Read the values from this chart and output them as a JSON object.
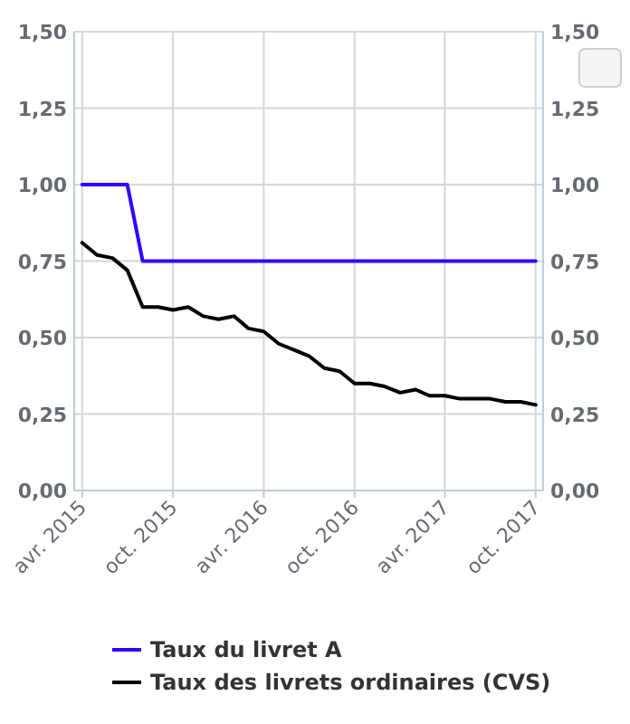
{
  "chart_data": {
    "type": "line",
    "x": [
      "2015-04",
      "2015-05",
      "2015-06",
      "2015-07",
      "2015-08",
      "2015-09",
      "2015-10",
      "2015-11",
      "2015-12",
      "2016-01",
      "2016-02",
      "2016-03",
      "2016-04",
      "2016-05",
      "2016-06",
      "2016-07",
      "2016-08",
      "2016-09",
      "2016-10",
      "2016-11",
      "2016-12",
      "2017-01",
      "2017-02",
      "2017-03",
      "2017-04",
      "2017-05",
      "2017-06",
      "2017-07",
      "2017-08",
      "2017-09",
      "2017-10"
    ],
    "series": [
      {
        "name": "Taux du livret A",
        "color": "#3300ff",
        "values": [
          1.0,
          1.0,
          1.0,
          1.0,
          0.75,
          0.75,
          0.75,
          0.75,
          0.75,
          0.75,
          0.75,
          0.75,
          0.75,
          0.75,
          0.75,
          0.75,
          0.75,
          0.75,
          0.75,
          0.75,
          0.75,
          0.75,
          0.75,
          0.75,
          0.75,
          0.75,
          0.75,
          0.75,
          0.75,
          0.75,
          0.75
        ]
      },
      {
        "name": "Taux des livrets ordinaires (CVS)",
        "color": "#000000",
        "values": [
          0.81,
          0.77,
          0.76,
          0.72,
          0.6,
          0.6,
          0.59,
          0.6,
          0.57,
          0.56,
          0.57,
          0.53,
          0.52,
          0.48,
          0.46,
          0.44,
          0.4,
          0.39,
          0.35,
          0.35,
          0.34,
          0.32,
          0.33,
          0.31,
          0.31,
          0.3,
          0.3,
          0.3,
          0.29,
          0.29,
          0.28
        ]
      }
    ],
    "xlim": [
      "2015-03-16",
      "2017-10-16"
    ],
    "xticks": [
      {
        "value": "2015-04",
        "label": "avr. 2015"
      },
      {
        "value": "2015-10",
        "label": "oct. 2015"
      },
      {
        "value": "2016-04",
        "label": "avr. 2016"
      },
      {
        "value": "2016-10",
        "label": "oct. 2016"
      },
      {
        "value": "2017-04",
        "label": "avr. 2017"
      },
      {
        "value": "2017-10",
        "label": "oct. 2017"
      }
    ],
    "ylim": [
      0,
      1.5
    ],
    "yticks": [
      {
        "value": 0,
        "label": "0,00"
      },
      {
        "value": 0.25,
        "label": "0,25"
      },
      {
        "value": 0.5,
        "label": "0,50"
      },
      {
        "value": 0.75,
        "label": "0,75"
      },
      {
        "value": 1,
        "label": "1,00"
      },
      {
        "value": 1.25,
        "label": "1,25"
      },
      {
        "value": 1.5,
        "label": "1,50"
      }
    ],
    "y2lim": [
      0,
      1.5
    ],
    "y2ticks": [
      {
        "value": 0,
        "label": "0,00"
      },
      {
        "value": 0.25,
        "label": "0,25"
      },
      {
        "value": 0.5,
        "label": "0,50"
      },
      {
        "value": 0.75,
        "label": "0,75"
      },
      {
        "value": 1,
        "label": "1,00"
      },
      {
        "value": 1.25,
        "label": "1,25"
      },
      {
        "value": 1.5,
        "label": "1,50"
      }
    ],
    "grid": true,
    "legend": "bottom",
    "marker": "none",
    "line_style": "solid"
  }
}
